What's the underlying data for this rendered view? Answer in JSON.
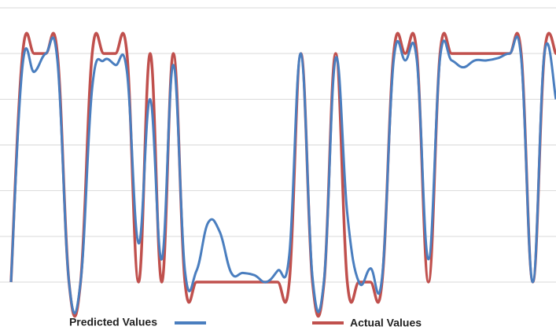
{
  "chart_data": {
    "type": "line",
    "categories": [
      null,
      null,
      null,
      null,
      null,
      null,
      null,
      null,
      null,
      null,
      null,
      null,
      null,
      null,
      null,
      null,
      null,
      null,
      null,
      null,
      null,
      null,
      null,
      null,
      null,
      null,
      null,
      null,
      null,
      null,
      null,
      null,
      null,
      null,
      null,
      null,
      null,
      null,
      null,
      null,
      null,
      null,
      null,
      null,
      null,
      null,
      null,
      null
    ],
    "series": [
      {
        "name": "Predicted Values",
        "color": "#4a7ebf",
        "values": [
          0,
          0.95,
          0.92,
          1,
          0.97,
          0,
          0,
          0.85,
          0.97,
          0.95,
          0.92,
          0.17,
          0.8,
          0.1,
          0.95,
          0.05,
          0.05,
          0.26,
          0.22,
          0.04,
          0.04,
          0.03,
          0,
          0.05,
          0.12,
          1,
          0.02,
          0.01,
          0.98,
          0.3,
          0,
          0.06,
          0.02,
          0.97,
          0.97,
          0.97,
          0.1,
          0.98,
          0.97,
          0.94,
          0.97,
          0.97,
          0.98,
          1,
          0.98,
          0,
          1,
          0.8
        ]
      },
      {
        "name": "Actual Values",
        "color": "#c0504d",
        "values": [
          0,
          1,
          1,
          1,
          1,
          0,
          0,
          1,
          1,
          1,
          1,
          0,
          1,
          0,
          1,
          0,
          0,
          0,
          0,
          0,
          0,
          0,
          0,
          0,
          0,
          1,
          0,
          0,
          1,
          0,
          0,
          0,
          0,
          1,
          1,
          1,
          0,
          1,
          1,
          1,
          1,
          1,
          1,
          1,
          1,
          0,
          1,
          1
        ]
      }
    ],
    "ylim": [
      0,
      1.2
    ],
    "yticks": [
      0,
      0.2,
      0.4,
      0.6,
      0.8,
      1,
      1.2
    ],
    "grid": true
  }
}
